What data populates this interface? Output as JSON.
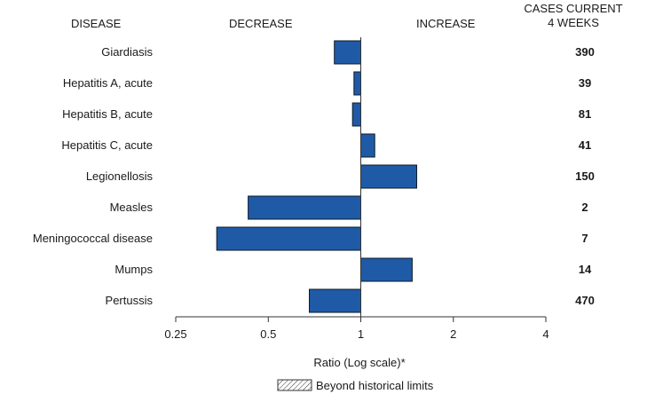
{
  "chart_data": {
    "type": "bar",
    "orientation": "horizontal",
    "headers": {
      "category": "DISEASE",
      "decrease": "DECREASE",
      "increase": "INCREASE",
      "cases_line1": "CASES CURRENT",
      "cases_line2": "4 WEEKS"
    },
    "categories": [
      "Giardiasis",
      "Hepatitis A, acute",
      "Hepatitis B, acute",
      "Hepatitis C, acute",
      "Legionellosis",
      "Measles",
      "Meningococcal disease",
      "Mumps",
      "Pertussis"
    ],
    "values": [
      0.82,
      0.95,
      0.94,
      1.11,
      1.52,
      0.43,
      0.34,
      1.47,
      0.68
    ],
    "cases": [
      "390",
      "39",
      "81",
      "41",
      "150",
      "2",
      "7",
      "14",
      "470"
    ],
    "xlabel": "Ratio (Log scale)*",
    "xscale": "log",
    "xlim": [
      0.25,
      4
    ],
    "xticks": [
      0.25,
      0.5,
      1,
      2,
      4
    ],
    "xtick_labels": [
      "0.25",
      "0.5",
      "1",
      "2",
      "4"
    ],
    "baseline": 1,
    "legend": {
      "label": "Beyond historical limits",
      "placement": "bottom-center"
    },
    "colors": {
      "bar_fill": "#1f5aa6",
      "bar_stroke": "#0d1b2a",
      "text": "#1a1a1a",
      "axis": "#333333"
    },
    "grid": false
  }
}
